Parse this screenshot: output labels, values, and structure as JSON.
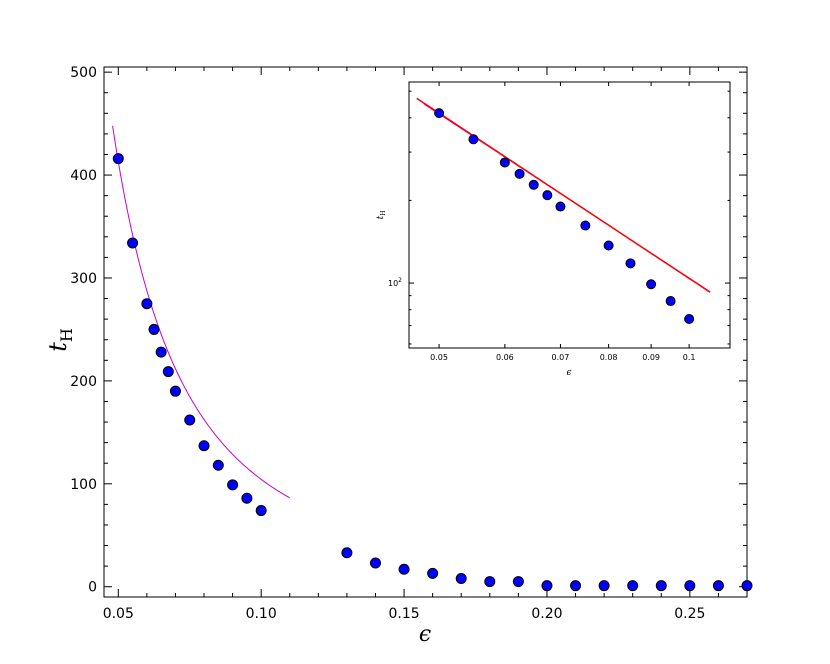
{
  "chart_data": [
    {
      "type": "scatter",
      "title": "",
      "xlabel": "ϵ",
      "ylabel_main": "t",
      "ylabel_sub": "H",
      "xlim": [
        0.045,
        0.27
      ],
      "ylim": [
        -10,
        505
      ],
      "x_ticks": [
        0.05,
        0.1,
        0.15,
        0.2,
        0.25
      ],
      "x_tick_labels": [
        "0.05",
        "0.10",
        "0.15",
        "0.20",
        "0.25"
      ],
      "y_ticks": [
        0,
        100,
        200,
        300,
        400,
        500
      ],
      "y_tick_labels": [
        "0",
        "100",
        "200",
        "300",
        "400",
        "500"
      ],
      "grid": false,
      "series": [
        {
          "kind": "points",
          "color": "#0000ff",
          "x": [
            0.05,
            0.055,
            0.06,
            0.0625,
            0.065,
            0.0675,
            0.07,
            0.075,
            0.08,
            0.085,
            0.09,
            0.095,
            0.1,
            0.13,
            0.14,
            0.15,
            0.16,
            0.17,
            0.18,
            0.19,
            0.2,
            0.21,
            0.22,
            0.23,
            0.24,
            0.25,
            0.26,
            0.27
          ],
          "y": [
            416,
            334,
            275,
            250,
            228,
            209,
            190,
            162,
            137,
            118,
            99,
            86,
            74,
            33,
            23,
            17,
            13,
            8,
            5,
            5,
            1,
            1,
            1,
            1,
            1,
            1,
            1,
            1
          ]
        },
        {
          "kind": "fit-curve",
          "color": "#cc00cc",
          "x_range": [
            0.048,
            0.11
          ],
          "model": "y = 1.08 * x^-1.985"
        }
      ]
    },
    {
      "type": "scatter",
      "title": "",
      "xlabel": "ϵ",
      "ylabel_main": "t",
      "ylabel_sub": "H",
      "xscale": "log",
      "yscale": "log",
      "xlim": [
        0.046,
        0.112
      ],
      "ylim": [
        58,
        540
      ],
      "x_ticks": [
        0.05,
        0.06,
        0.07,
        0.08,
        0.09,
        0.1
      ],
      "x_tick_labels": [
        "0.05",
        "0.06",
        "0.07",
        "0.08",
        "0.09",
        "0.1"
      ],
      "y_ticks": [
        100
      ],
      "y_tick_labels_base": "10",
      "y_tick_labels_exp": "2",
      "grid": false,
      "series": [
        {
          "kind": "points",
          "color": "#0000ff",
          "x": [
            0.05,
            0.055,
            0.06,
            0.0625,
            0.065,
            0.0675,
            0.07,
            0.075,
            0.08,
            0.085,
            0.09,
            0.095,
            0.1
          ],
          "y": [
            416,
            334,
            275,
            250,
            228,
            209,
            190,
            162,
            137,
            118,
            99,
            86,
            74
          ]
        },
        {
          "kind": "fit-curve",
          "color": "#cc00cc",
          "x_range": [
            0.048,
            0.106
          ],
          "model": "y = 1.08 * x^-1.985"
        },
        {
          "kind": "reference-line",
          "color": "#ff0000",
          "x_range": [
            0.047,
            0.106
          ],
          "model": "y = 1.04 * x^-2"
        }
      ]
    }
  ]
}
